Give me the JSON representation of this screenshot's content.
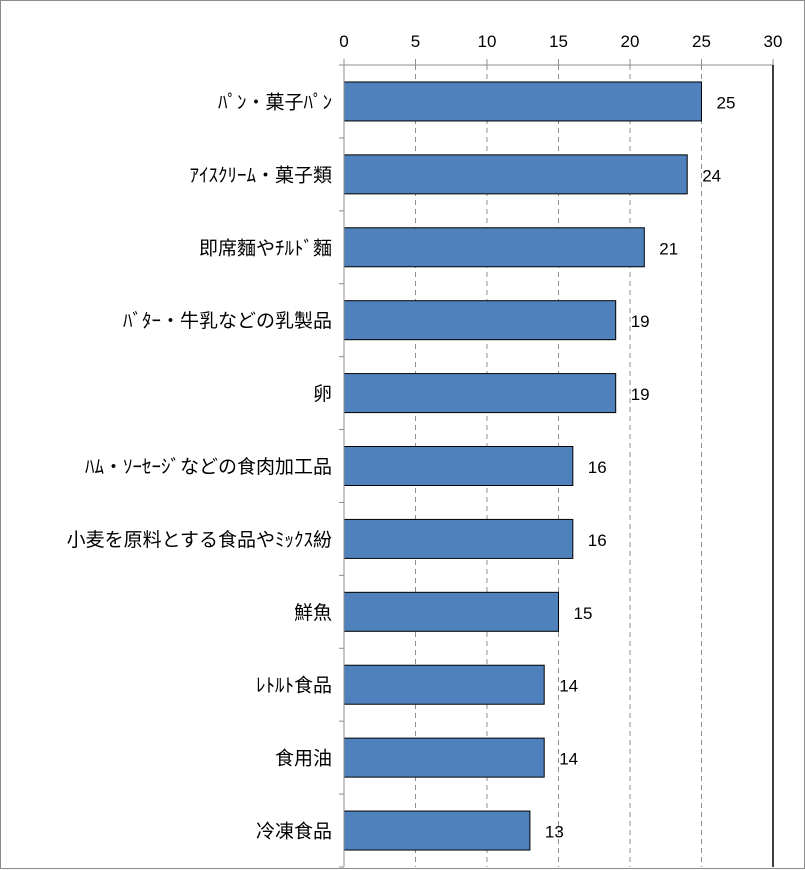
{
  "chart_data": {
    "type": "bar",
    "orientation": "horizontal",
    "title": "",
    "xlabel": "",
    "ylabel": "",
    "xlim": [
      0,
      30
    ],
    "x_ticks": [
      0,
      5,
      10,
      15,
      20,
      25,
      30
    ],
    "grid": "vertical dashed gridlines",
    "legend": "none",
    "bar_color": "#4f81bd",
    "bar_border_color": "#000000",
    "categories": [
      "ﾊﾟﾝ・菓子ﾊﾟﾝ",
      "ｱｲｽｸﾘｰﾑ・菓子類",
      "即席麵やﾁﾙﾄﾞ麵",
      "ﾊﾞﾀｰ・牛乳などの乳製品",
      "卵",
      "ﾊﾑ・ｿｰｾｰｼﾞなどの食肉加工品",
      "小麦を原料とする食品やﾐｯｸｽ紛",
      "鮮魚",
      "ﾚﾄﾙﾄ食品",
      "食用油",
      "冷凍食品"
    ],
    "values": [
      25,
      24,
      21,
      19,
      19,
      16,
      16,
      15,
      14,
      14,
      13
    ],
    "data_labels": [
      "25",
      "24",
      "21",
      "19",
      "19",
      "16",
      "16",
      "15",
      "14",
      "14",
      "13"
    ]
  }
}
